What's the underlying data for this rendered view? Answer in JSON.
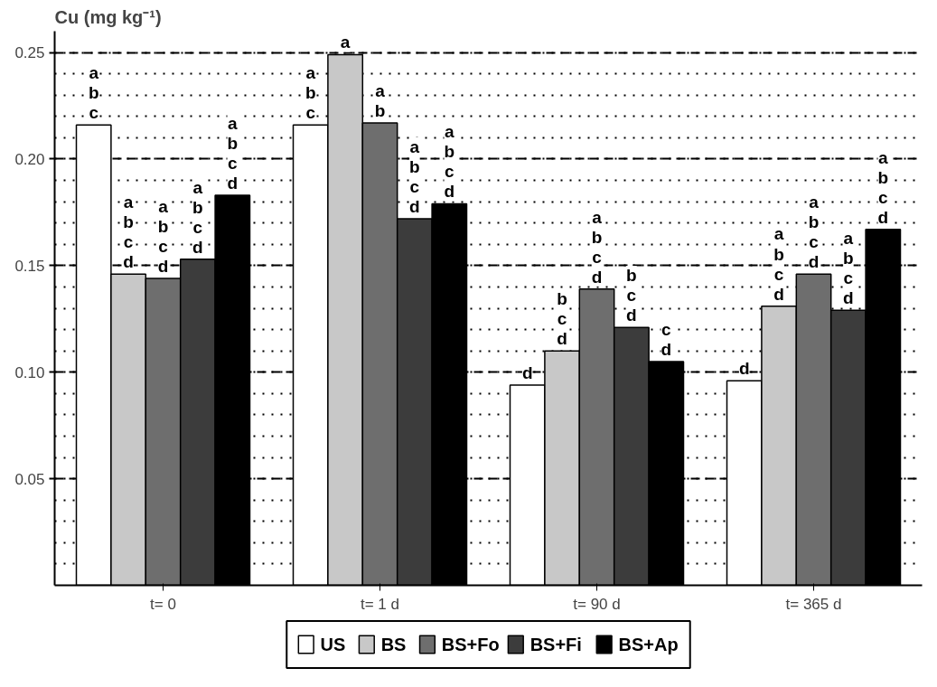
{
  "chart_data": {
    "type": "bar",
    "title": "Cu (mg kg⁻¹)",
    "categories": [
      "t= 0",
      "t= 1 d",
      "t= 90 d",
      "t= 365 d"
    ],
    "ylim": [
      0,
      0.26
    ],
    "yticks": [
      {
        "value": 0.05,
        "label": "0.05"
      },
      {
        "value": 0.1,
        "label": "0.10"
      },
      {
        "value": 0.15,
        "label": "0.15"
      },
      {
        "value": 0.2,
        "label": "0.20"
      },
      {
        "value": 0.25,
        "label": "0.25"
      }
    ],
    "grid": "y",
    "legend": "bottom",
    "series": [
      {
        "name": "US",
        "color": "#ffffff",
        "values": [
          0.216,
          0.216,
          0.094,
          0.096
        ],
        "value_labels": [
          "a\nb\nc",
          "a\nb\nc",
          "d",
          "d"
        ]
      },
      {
        "name": "BS",
        "color": "#c8c8c8",
        "values": [
          0.146,
          0.249,
          0.11,
          0.131
        ],
        "value_labels": [
          "a\nb\nc\nd",
          "a",
          "b\nc\nd",
          "a\nb\nc\nd"
        ]
      },
      {
        "name": "BS+Fo",
        "color": "#6e6e6e",
        "values": [
          0.144,
          0.217,
          0.139,
          0.146
        ],
        "value_labels": [
          "a\nb\nc\nd",
          "a\nb",
          "a\nb\nc\nd",
          "a\nb\nc\nd"
        ]
      },
      {
        "name": "BS+Fi",
        "color": "#3c3c3c",
        "values": [
          0.153,
          0.172,
          0.121,
          0.129
        ],
        "value_labels": [
          "a\nb\nc\nd",
          "a\nb\nc\nd",
          "b\nc\nd",
          "a\nb\nc\nd"
        ]
      },
      {
        "name": "BS+Ap",
        "color": "#000000",
        "values": [
          0.183,
          0.179,
          0.105,
          0.167
        ],
        "value_labels": [
          "a\nb\nc\nd",
          "a\nb\nc\nd",
          "c\nd",
          "a\nb\nc\nd"
        ]
      }
    ]
  }
}
